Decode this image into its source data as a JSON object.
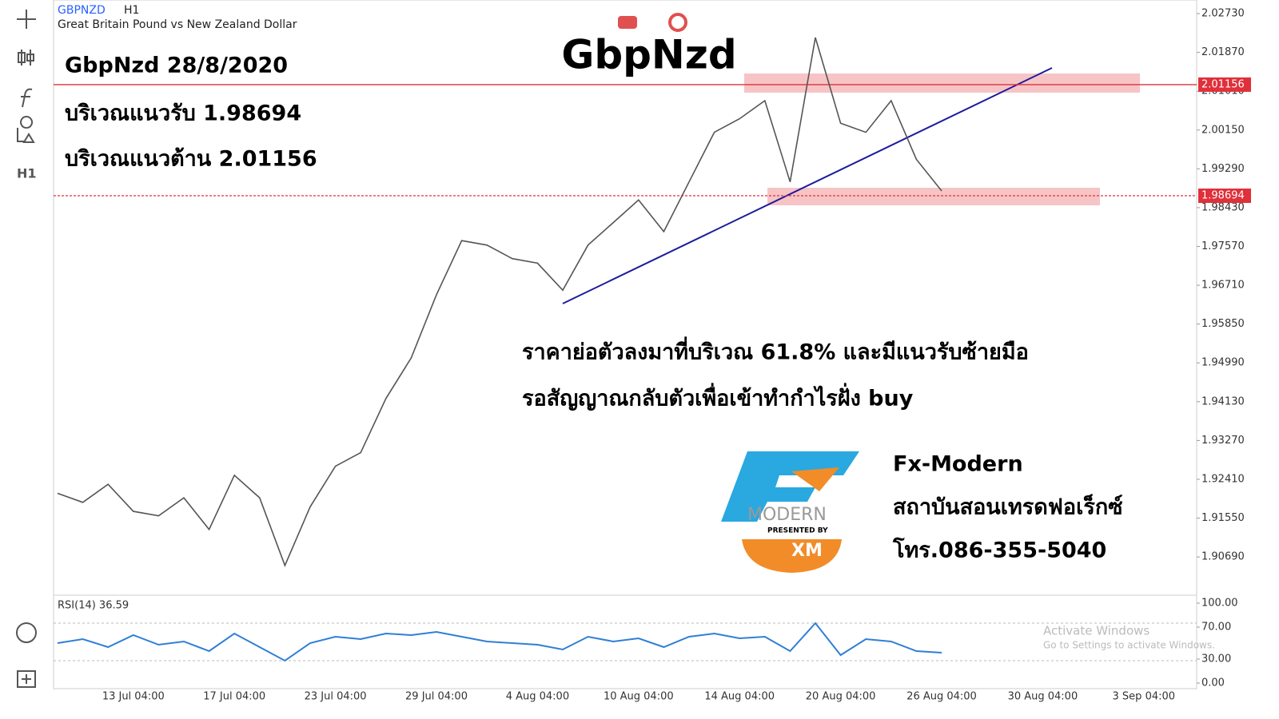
{
  "chart_data": [
    {
      "type": "line",
      "symbol": "GBPNZD",
      "timeframe": "H1",
      "description": "Great Britain Pound vs New Zealand Dollar",
      "title": "GbpNzd",
      "subtitle": "GbpNzd 28/8/2020",
      "annotations": [
        "บริเวณแนวรับ 1.98694",
        "บริเวณแนวต้าน 2.01156",
        "ราคาย่อตัวลงมาที่บริเวณ 61.8% และมีแนวรับซ้ายมือ",
        "รอสัญญาณกลับตัวเพื่อเข้าทำกำไรฝั่ง buy",
        "Fx-Modern",
        "สถาบันสอนเทรดฟอเร็กซ์",
        "โทร.086-355-5040",
        "MODERN",
        "PRESENTED BY",
        "XM"
      ],
      "categories": [
        null,
        null,
        null,
        "13 Jul 04:00",
        null,
        null,
        null,
        "17 Jul 04:00",
        null,
        null,
        null,
        "23 Jul 04:00",
        null,
        null,
        null,
        "29 Jul 04:00",
        null,
        null,
        null,
        "4 Aug 04:00",
        null,
        null,
        null,
        "10 Aug 04:00",
        null,
        null,
        null,
        "14 Aug 04:00",
        null,
        null,
        null,
        "20 Aug 04:00",
        null,
        null,
        null,
        "26 Aug 04:00",
        null,
        null,
        null,
        "30 Aug 04:00",
        null,
        null,
        null,
        "3 Sep 04:00",
        null
      ],
      "values": [
        1.921,
        1.919,
        1.923,
        1.917,
        1.916,
        1.92,
        1.913,
        1.925,
        1.92,
        1.905,
        1.918,
        1.927,
        1.93,
        1.942,
        1.951,
        1.965,
        1.977,
        1.976,
        1.973,
        1.972,
        1.966,
        1.976,
        1.981,
        1.986,
        1.979,
        1.99,
        2.001,
        2.004,
        2.008,
        1.99,
        2.022,
        2.003,
        2.001,
        2.008,
        1.995,
        1.988,
        null,
        null,
        null,
        null,
        null,
        null,
        null,
        null,
        null
      ],
      "color": "#555555",
      "ylim": [
        1.9009,
        2.0309
      ],
      "yticks": [
        {
          "value": 2.0273,
          "label": "2.02730"
        },
        {
          "value": 2.0187,
          "label": "2.01870"
        },
        {
          "value": 2.0101,
          "label": "2.01010"
        },
        {
          "value": 2.0015,
          "label": "2.00150"
        },
        {
          "value": 1.9929,
          "label": "1.99290"
        },
        {
          "value": 1.9843,
          "label": "1.98430"
        },
        {
          "value": 1.9757,
          "label": "1.97570"
        },
        {
          "value": 1.9671,
          "label": "1.96710"
        },
        {
          "value": 1.9585,
          "label": "1.95850"
        },
        {
          "value": 1.9499,
          "label": "1.94990"
        },
        {
          "value": 1.9413,
          "label": "1.94130"
        },
        {
          "value": 1.9327,
          "label": "1.93270"
        },
        {
          "value": 1.9241,
          "label": "1.92410"
        },
        {
          "value": 1.9155,
          "label": "1.91550"
        },
        {
          "value": 1.9069,
          "label": "1.90690"
        }
      ],
      "hlines": [
        2.01156,
        1.98694
      ],
      "hline_color": "#e0303a"
    },
    {
      "type": "line",
      "title": "RSI(14) 36.59",
      "values": [
        50,
        55,
        45,
        60,
        48,
        52,
        40,
        62,
        45,
        28,
        50,
        58,
        55,
        62,
        60,
        64,
        58,
        52,
        50,
        48,
        42,
        58,
        52,
        56,
        45,
        58,
        62,
        56,
        58,
        40,
        75,
        35,
        55,
        52,
        40,
        38,
        null,
        null,
        null,
        null,
        null,
        null,
        null,
        null,
        null
      ],
      "color": "#2f7fd6",
      "ylim": [
        0,
        100
      ],
      "yticks": [
        {
          "value": 0,
          "label": "0.00"
        },
        {
          "value": 30,
          "label": "30.00"
        },
        {
          "value": 70,
          "label": "70.00"
        },
        {
          "value": 100,
          "label": "100.00"
        }
      ],
      "watermark": [
        "Activate Windows",
        "Go to Settings to activate Windows."
      ]
    }
  ]
}
